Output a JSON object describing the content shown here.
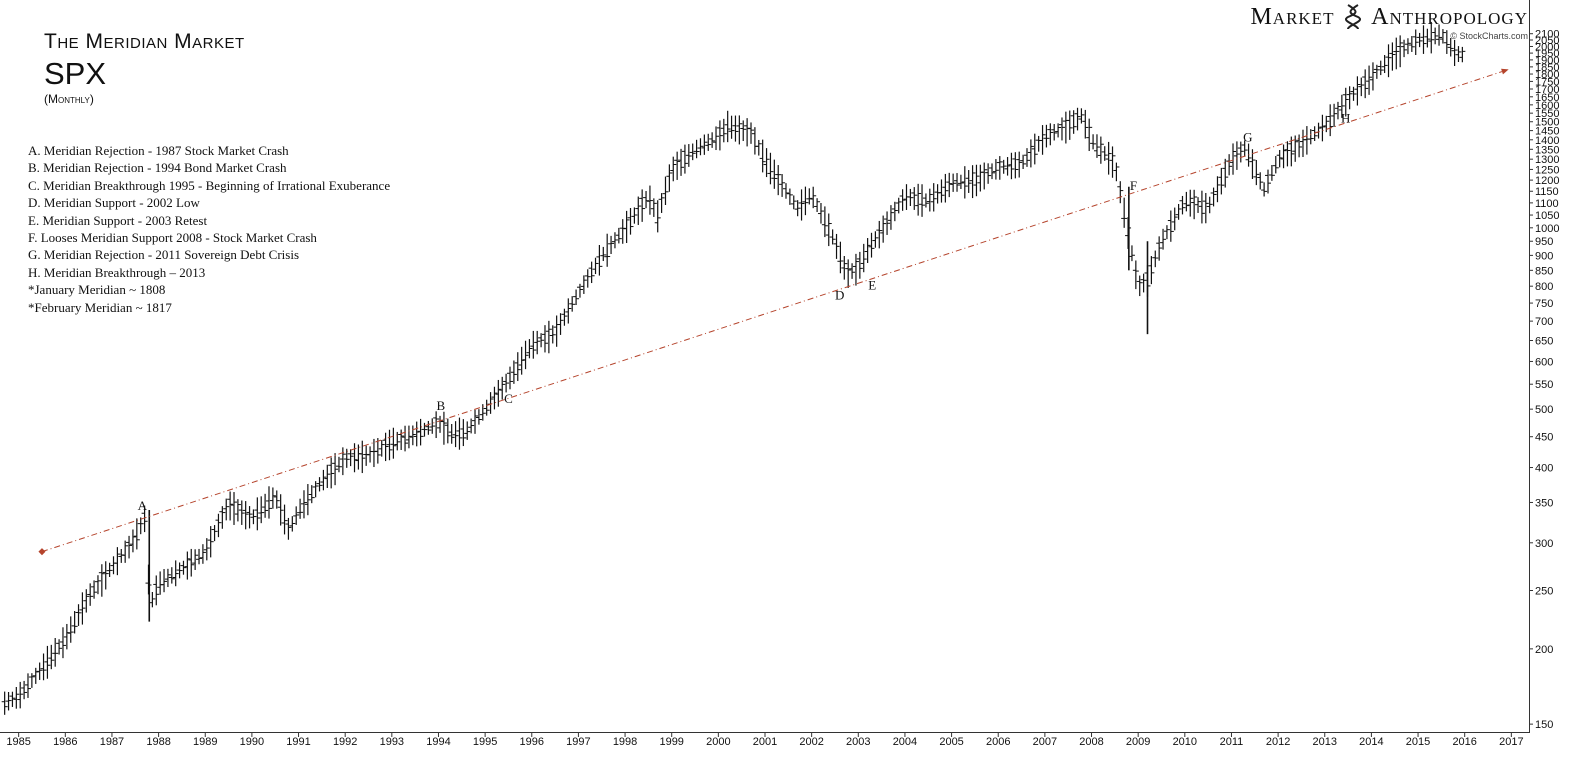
{
  "header": {
    "title": "The Meridian Market",
    "ticker": "SPX",
    "period": "(Monthly)"
  },
  "brand": {
    "name_left": "Market",
    "name_right": "Anthropology",
    "credit": "© StockCharts.com"
  },
  "legend": [
    "A.  Meridian Rejection - 1987 Stock Market Crash",
    "B.  Meridian Rejection - 1994 Bond Market Crash",
    "C.  Meridian Breakthrough 1995 - Beginning of Irrational Exuberance",
    "D.  Meridian Support - 2002 Low",
    "E.  Meridian Support - 2003 Retest",
    "F.  Looses Meridian Support 2008 - Stock Market Crash",
    "G.  Meridian Rejection - 2011 Sovereign Debt Crisis",
    "H.  Meridian Breakthrough – 2013",
    "*January Meridian      ~  1808",
    "*February Meridian    ~  1817"
  ],
  "colors": {
    "meridian_line": "#b5442c",
    "price_bars": "#111111"
  },
  "chart_data": {
    "type": "line",
    "title": "SPX",
    "subtitle": "(Monthly)",
    "yscale": "log",
    "ylim": [
      145,
      2130
    ],
    "xlim": [
      1984.6,
      2017.4
    ],
    "x_ticks": [
      "1985",
      "1986",
      "1987",
      "1988",
      "1989",
      "1990",
      "1991",
      "1992",
      "1993",
      "1994",
      "1995",
      "1996",
      "1997",
      "1998",
      "1999",
      "2000",
      "2001",
      "2002",
      "2003",
      "2004",
      "2005",
      "2006",
      "2007",
      "2008",
      "2009",
      "2010",
      "2011",
      "2012",
      "2013",
      "2014",
      "2015",
      "2016",
      "2017"
    ],
    "y_ticks": [
      150,
      200,
      250,
      300,
      350,
      400,
      450,
      500,
      550,
      600,
      650,
      700,
      750,
      800,
      850,
      900,
      950,
      1000,
      1050,
      1100,
      1150,
      1200,
      1250,
      1300,
      1350,
      1400,
      1450,
      1500,
      1550,
      1600,
      1650,
      1700,
      1750,
      1800,
      1850,
      1900,
      1950,
      2000,
      2050,
      2100
    ],
    "grid": false,
    "series": [
      {
        "style": "ohlc-bars",
        "x": [
          1984.7,
          1985.0,
          1985.5,
          1986.0,
          1986.5,
          1987.0,
          1987.4,
          1987.7,
          1987.8,
          1987.85,
          1988.0,
          1988.5,
          1989.0,
          1989.5,
          1990.0,
          1990.5,
          1990.8,
          1991.0,
          1991.5,
          1992.0,
          1992.5,
          1993.0,
          1993.5,
          1994.0,
          1994.3,
          1994.6,
          1995.0,
          1995.5,
          1996.0,
          1996.5,
          1997.0,
          1997.5,
          1998.0,
          1998.5,
          1998.7,
          1999.0,
          1999.5,
          2000.0,
          2000.2,
          2000.7,
          2001.0,
          2001.3,
          2001.7,
          2002.0,
          2002.5,
          2002.75,
          2003.0,
          2003.2,
          2003.5,
          2004.0,
          2004.5,
          2005.0,
          2005.5,
          2006.0,
          2006.5,
          2007.0,
          2007.5,
          2007.8,
          2008.0,
          2008.5,
          2008.8,
          2008.9,
          2009.0,
          2009.2,
          2009.5,
          2010.0,
          2010.5,
          2011.0,
          2011.3,
          2011.7,
          2012.0,
          2012.5,
          2013.0,
          2013.5,
          2014.0,
          2014.5,
          2015.0,
          2015.5,
          2015.8,
          2016.0
        ],
        "y": [
          163,
          167,
          186,
          208,
          245,
          274,
          298,
          330,
          250,
          240,
          257,
          272,
          290,
          348,
          330,
          360,
          315,
          340,
          380,
          415,
          420,
          440,
          455,
          475,
          455,
          460,
          500,
          560,
          640,
          670,
          780,
          900,
          1000,
          1130,
          1050,
          1250,
          1350,
          1420,
          1480,
          1440,
          1300,
          1200,
          1080,
          1140,
          950,
          840,
          860,
          920,
          990,
          1130,
          1110,
          1190,
          1200,
          1260,
          1280,
          1420,
          1480,
          1540,
          1400,
          1280,
          970,
          880,
          800,
          820,
          950,
          1110,
          1080,
          1300,
          1360,
          1160,
          1300,
          1380,
          1480,
          1640,
          1780,
          1950,
          2050,
          2100,
          1950,
          1940
        ]
      },
      {
        "name": "Meridian",
        "style": "dash-dot",
        "x": [
          1985.5,
          2016.8
        ],
        "y": [
          290,
          1817
        ]
      }
    ],
    "annotations": [
      {
        "label": "A",
        "x": 1987.65,
        "y": 340
      },
      {
        "label": "B",
        "x": 1994.05,
        "y": 498
      },
      {
        "label": "C",
        "x": 1995.5,
        "y": 512
      },
      {
        "label": "D",
        "x": 2002.6,
        "y": 760
      },
      {
        "label": "E",
        "x": 2003.3,
        "y": 790
      },
      {
        "label": "F",
        "x": 2008.9,
        "y": 1155
      },
      {
        "label": "G",
        "x": 2011.35,
        "y": 1390
      },
      {
        "label": "H",
        "x": 2013.45,
        "y": 1495
      }
    ]
  }
}
